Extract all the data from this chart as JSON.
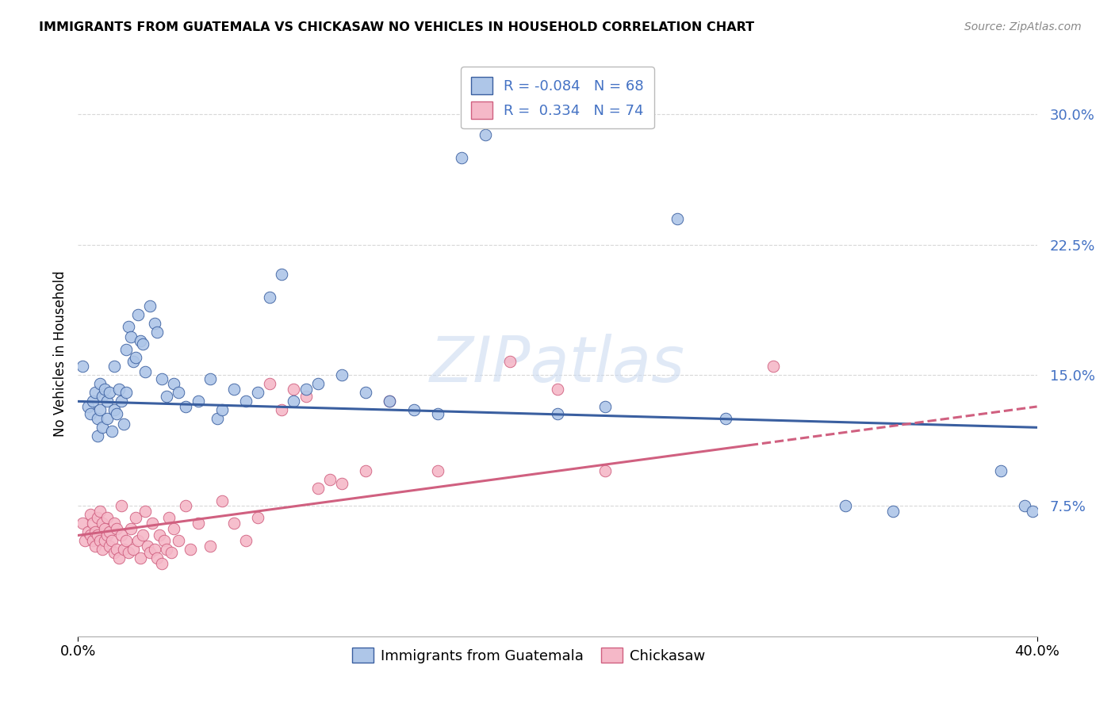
{
  "title": "IMMIGRANTS FROM GUATEMALA VS CHICKASAW NO VEHICLES IN HOUSEHOLD CORRELATION CHART",
  "source": "Source: ZipAtlas.com",
  "ylabel": "No Vehicles in Household",
  "yticks": [
    "7.5%",
    "15.0%",
    "22.5%",
    "30.0%"
  ],
  "ytick_vals": [
    7.5,
    15.0,
    22.5,
    30.0
  ],
  "xlim": [
    0.0,
    40.0
  ],
  "ylim": [
    0.0,
    32.5
  ],
  "legend_label1": "Immigrants from Guatemala",
  "legend_label2": "Chickasaw",
  "r1": "-0.084",
  "n1": "68",
  "r2": "0.334",
  "n2": "74",
  "blue_color": "#aec6e8",
  "pink_color": "#f5b8c8",
  "blue_line_color": "#3a5fa0",
  "pink_line_color": "#d06080",
  "blue_scatter": [
    [
      0.2,
      15.5
    ],
    [
      0.4,
      13.2
    ],
    [
      0.5,
      12.8
    ],
    [
      0.6,
      13.5
    ],
    [
      0.7,
      14.0
    ],
    [
      0.8,
      11.5
    ],
    [
      0.8,
      12.5
    ],
    [
      0.9,
      13.0
    ],
    [
      0.9,
      14.5
    ],
    [
      1.0,
      12.0
    ],
    [
      1.0,
      13.8
    ],
    [
      1.1,
      14.2
    ],
    [
      1.2,
      12.5
    ],
    [
      1.2,
      13.5
    ],
    [
      1.3,
      14.0
    ],
    [
      1.4,
      11.8
    ],
    [
      1.5,
      13.0
    ],
    [
      1.5,
      15.5
    ],
    [
      1.6,
      12.8
    ],
    [
      1.7,
      14.2
    ],
    [
      1.8,
      13.5
    ],
    [
      1.9,
      12.2
    ],
    [
      2.0,
      16.5
    ],
    [
      2.0,
      14.0
    ],
    [
      2.1,
      17.8
    ],
    [
      2.2,
      17.2
    ],
    [
      2.3,
      15.8
    ],
    [
      2.4,
      16.0
    ],
    [
      2.5,
      18.5
    ],
    [
      2.6,
      17.0
    ],
    [
      2.7,
      16.8
    ],
    [
      2.8,
      15.2
    ],
    [
      3.0,
      19.0
    ],
    [
      3.2,
      18.0
    ],
    [
      3.3,
      17.5
    ],
    [
      3.5,
      14.8
    ],
    [
      3.7,
      13.8
    ],
    [
      4.0,
      14.5
    ],
    [
      4.2,
      14.0
    ],
    [
      4.5,
      13.2
    ],
    [
      5.0,
      13.5
    ],
    [
      5.5,
      14.8
    ],
    [
      5.8,
      12.5
    ],
    [
      6.0,
      13.0
    ],
    [
      6.5,
      14.2
    ],
    [
      7.0,
      13.5
    ],
    [
      7.5,
      14.0
    ],
    [
      8.0,
      19.5
    ],
    [
      8.5,
      20.8
    ],
    [
      9.0,
      13.5
    ],
    [
      9.5,
      14.2
    ],
    [
      10.0,
      14.5
    ],
    [
      11.0,
      15.0
    ],
    [
      12.0,
      14.0
    ],
    [
      13.0,
      13.5
    ],
    [
      14.0,
      13.0
    ],
    [
      15.0,
      12.8
    ],
    [
      16.0,
      27.5
    ],
    [
      17.0,
      28.8
    ],
    [
      20.0,
      12.8
    ],
    [
      22.0,
      13.2
    ],
    [
      25.0,
      24.0
    ],
    [
      27.0,
      12.5
    ],
    [
      32.0,
      7.5
    ],
    [
      34.0,
      7.2
    ],
    [
      38.5,
      9.5
    ],
    [
      39.5,
      7.5
    ],
    [
      39.8,
      7.2
    ]
  ],
  "pink_scatter": [
    [
      0.2,
      6.5
    ],
    [
      0.3,
      5.5
    ],
    [
      0.4,
      6.0
    ],
    [
      0.5,
      5.8
    ],
    [
      0.5,
      7.0
    ],
    [
      0.6,
      5.5
    ],
    [
      0.6,
      6.5
    ],
    [
      0.7,
      5.2
    ],
    [
      0.7,
      6.0
    ],
    [
      0.8,
      5.8
    ],
    [
      0.8,
      6.8
    ],
    [
      0.9,
      5.5
    ],
    [
      0.9,
      7.2
    ],
    [
      1.0,
      5.0
    ],
    [
      1.0,
      6.5
    ],
    [
      1.1,
      5.5
    ],
    [
      1.1,
      6.2
    ],
    [
      1.2,
      5.8
    ],
    [
      1.2,
      6.8
    ],
    [
      1.3,
      5.2
    ],
    [
      1.3,
      6.0
    ],
    [
      1.4,
      5.5
    ],
    [
      1.5,
      4.8
    ],
    [
      1.5,
      6.5
    ],
    [
      1.6,
      5.0
    ],
    [
      1.6,
      6.2
    ],
    [
      1.7,
      4.5
    ],
    [
      1.8,
      5.8
    ],
    [
      1.8,
      7.5
    ],
    [
      1.9,
      5.0
    ],
    [
      2.0,
      5.5
    ],
    [
      2.1,
      4.8
    ],
    [
      2.2,
      6.2
    ],
    [
      2.3,
      5.0
    ],
    [
      2.4,
      6.8
    ],
    [
      2.5,
      5.5
    ],
    [
      2.6,
      4.5
    ],
    [
      2.7,
      5.8
    ],
    [
      2.8,
      7.2
    ],
    [
      2.9,
      5.2
    ],
    [
      3.0,
      4.8
    ],
    [
      3.1,
      6.5
    ],
    [
      3.2,
      5.0
    ],
    [
      3.3,
      4.5
    ],
    [
      3.4,
      5.8
    ],
    [
      3.5,
      4.2
    ],
    [
      3.6,
      5.5
    ],
    [
      3.7,
      5.0
    ],
    [
      3.8,
      6.8
    ],
    [
      3.9,
      4.8
    ],
    [
      4.0,
      6.2
    ],
    [
      4.2,
      5.5
    ],
    [
      4.5,
      7.5
    ],
    [
      4.7,
      5.0
    ],
    [
      5.0,
      6.5
    ],
    [
      5.5,
      5.2
    ],
    [
      6.0,
      7.8
    ],
    [
      6.5,
      6.5
    ],
    [
      7.0,
      5.5
    ],
    [
      7.5,
      6.8
    ],
    [
      8.0,
      14.5
    ],
    [
      8.5,
      13.0
    ],
    [
      9.0,
      14.2
    ],
    [
      9.5,
      13.8
    ],
    [
      10.0,
      8.5
    ],
    [
      10.5,
      9.0
    ],
    [
      11.0,
      8.8
    ],
    [
      12.0,
      9.5
    ],
    [
      13.0,
      13.5
    ],
    [
      15.0,
      9.5
    ],
    [
      18.0,
      15.8
    ],
    [
      20.0,
      14.2
    ],
    [
      22.0,
      9.5
    ],
    [
      29.0,
      15.5
    ]
  ],
  "watermark": "ZIPatlas",
  "background_color": "#ffffff",
  "grid_color": "#d8d8d8",
  "tick_color": "#4472c4"
}
